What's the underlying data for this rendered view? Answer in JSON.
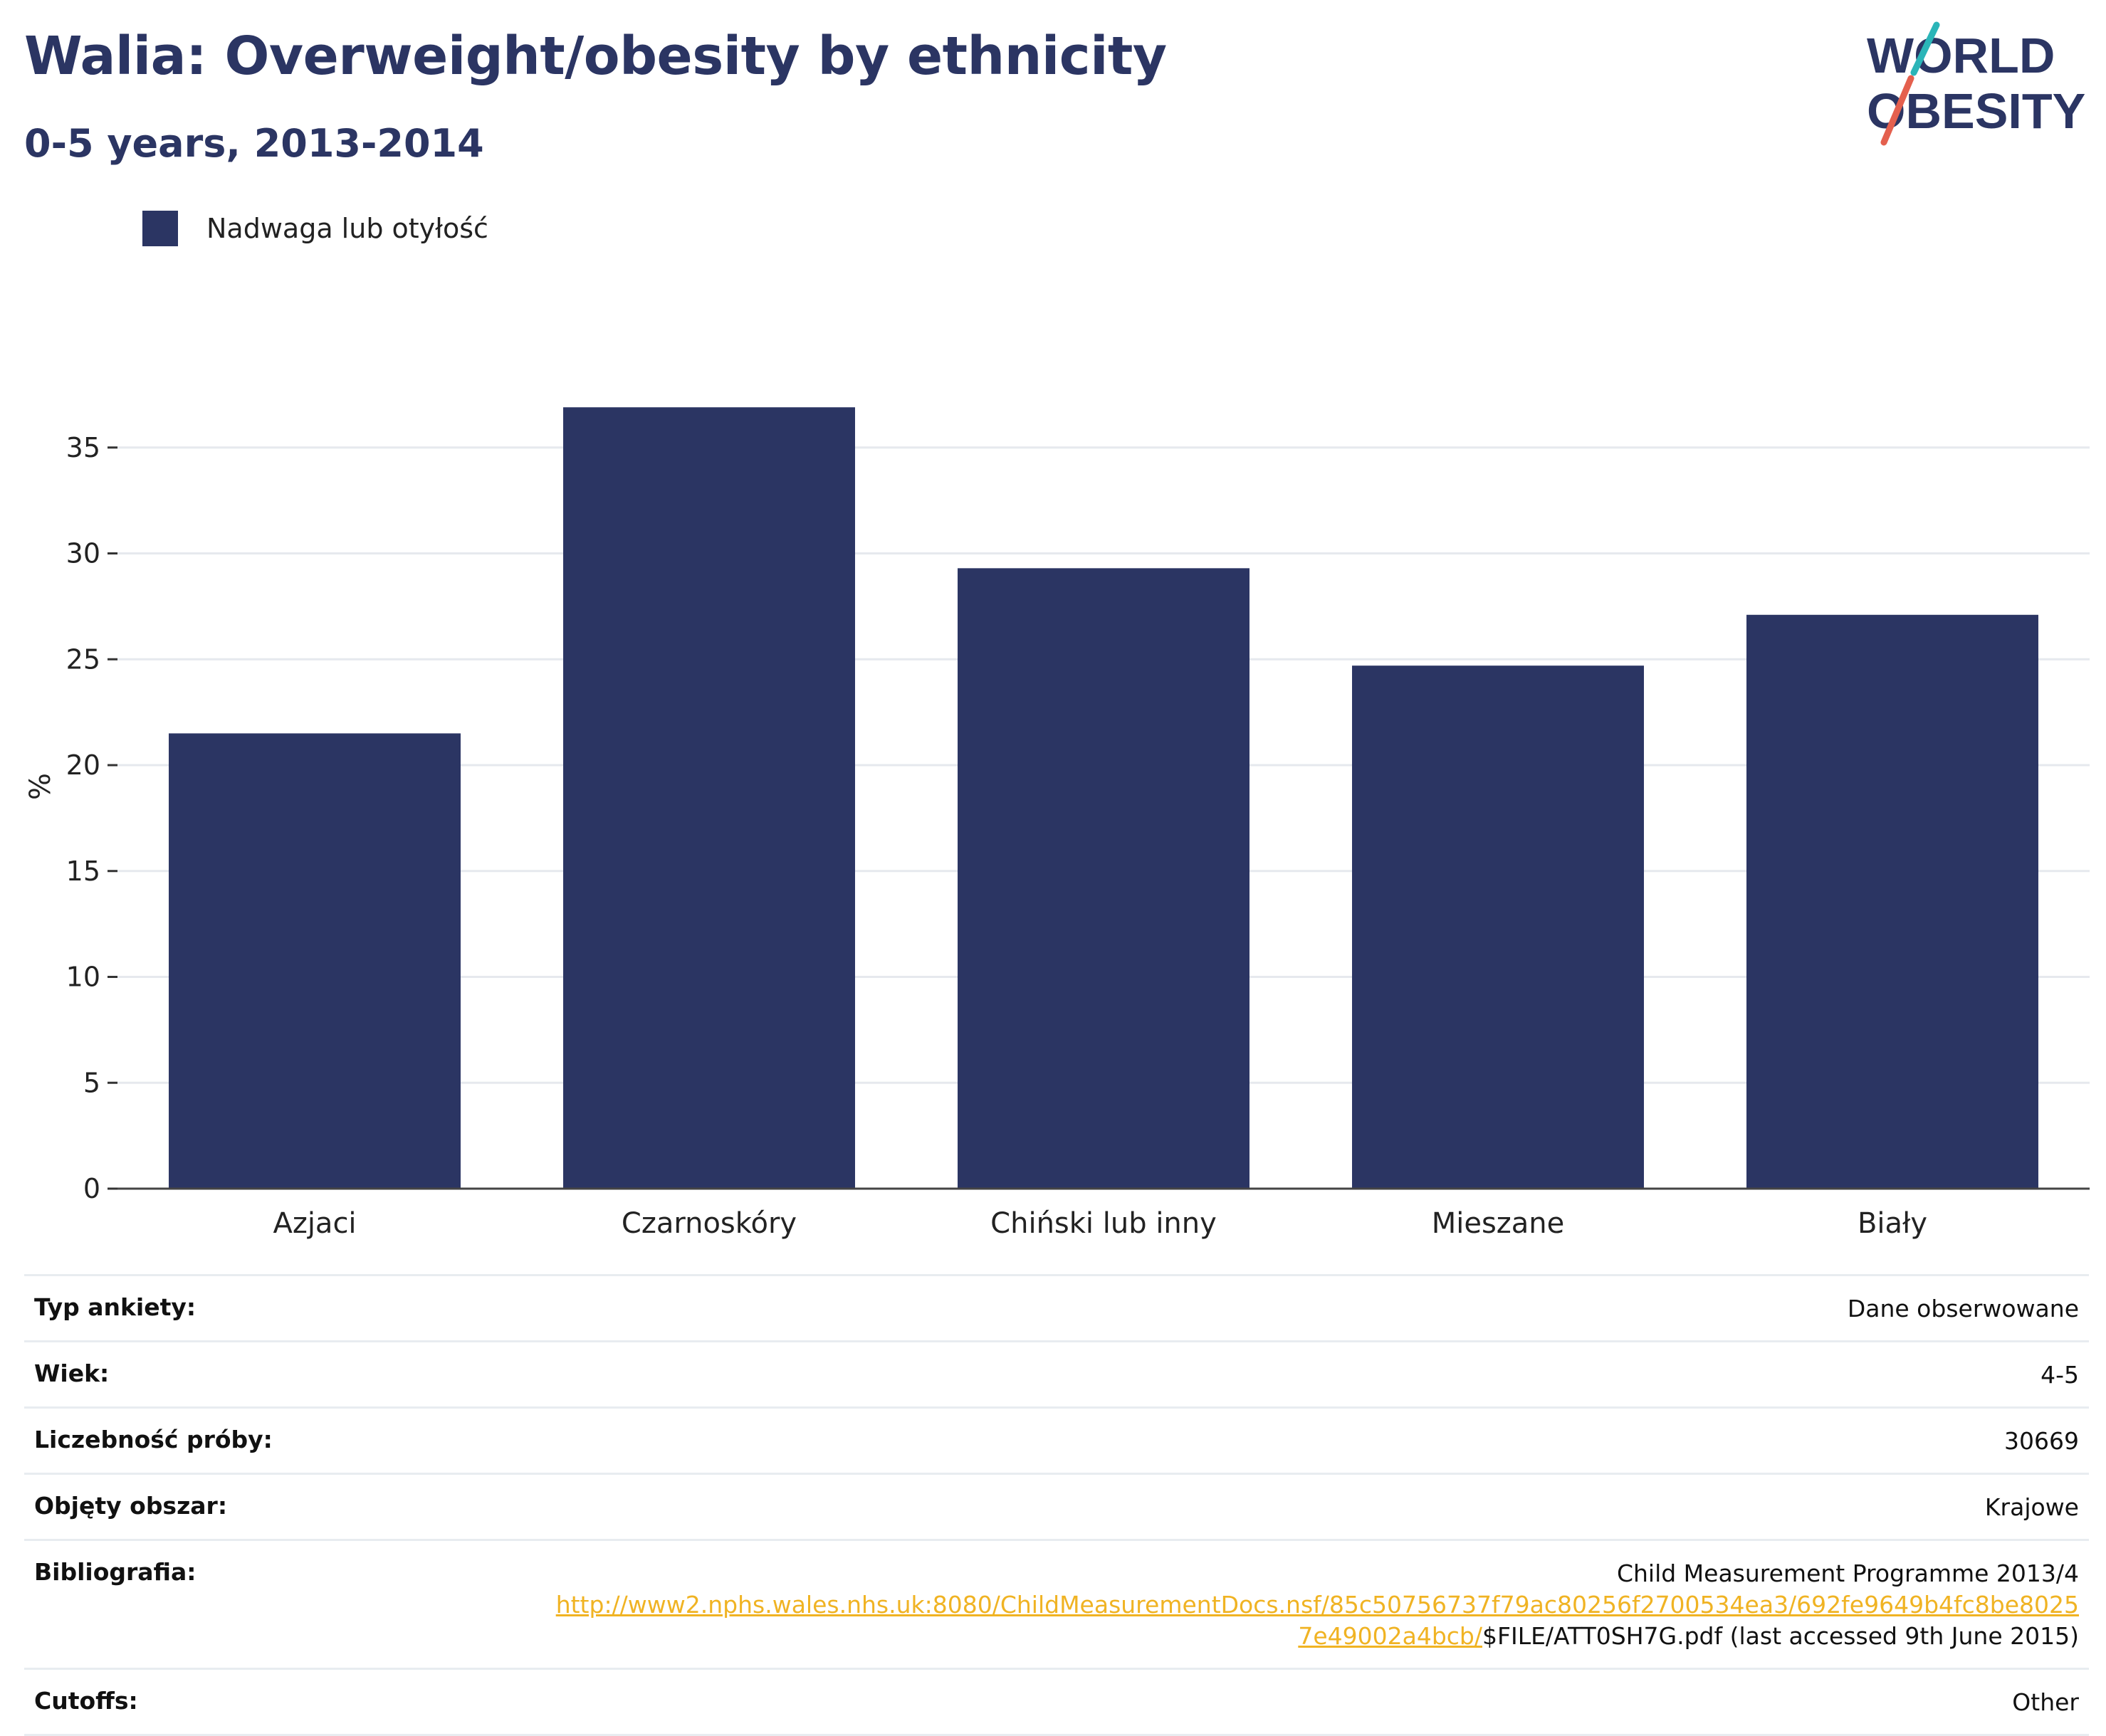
{
  "header": {
    "title": "Walia: Overweight/obesity by ethnicity",
    "subtitle": "0-5 years, 2013-2014"
  },
  "logo": {
    "line1": "WORLD",
    "line2": "OBESITY",
    "stroke_colors": [
      "#2bb5b8",
      "#e4604e"
    ],
    "text_color": "#2b3563"
  },
  "chart_data": {
    "type": "bar",
    "categories": [
      "Azjaci",
      "Czarnoskóry",
      "Chiński lub inny",
      "Mieszane",
      "Biały"
    ],
    "series": [
      {
        "name": "Nadwaga lub otyłość",
        "values": [
          21.5,
          36.9,
          29.3,
          24.7,
          27.1
        ],
        "color": "#2b3563"
      }
    ],
    "ylabel": "%",
    "xlabel": "",
    "ylim": [
      0,
      40
    ],
    "yticks": [
      0,
      5,
      10,
      15,
      20,
      25,
      30,
      35
    ],
    "grid": true,
    "legend_position": "top-left"
  },
  "info": {
    "rows": [
      {
        "label": "Typ ankiety:",
        "value": "Dane obserwowane"
      },
      {
        "label": "Wiek:",
        "value": "4-5"
      },
      {
        "label": "Liczebność próby:",
        "value": "30669"
      },
      {
        "label": "Objęty obszar:",
        "value": "Krajowe"
      }
    ],
    "bibliography": {
      "label": "Bibliografia:",
      "text": "Child Measurement Programme 2013/4",
      "link": "http://www2.nphs.wales.nhs.uk:8080/ChildMeasurementDocs.nsf/85c50756737f79ac80256f2700534ea3/692fe9649b4fc8be80257e49002a4bcb/",
      "suffix": "$FILE/ATT0SH7G.pdf (last accessed 9th June 2015)"
    },
    "cutoffs": {
      "label": "Cutoffs:",
      "value": "Other"
    }
  }
}
